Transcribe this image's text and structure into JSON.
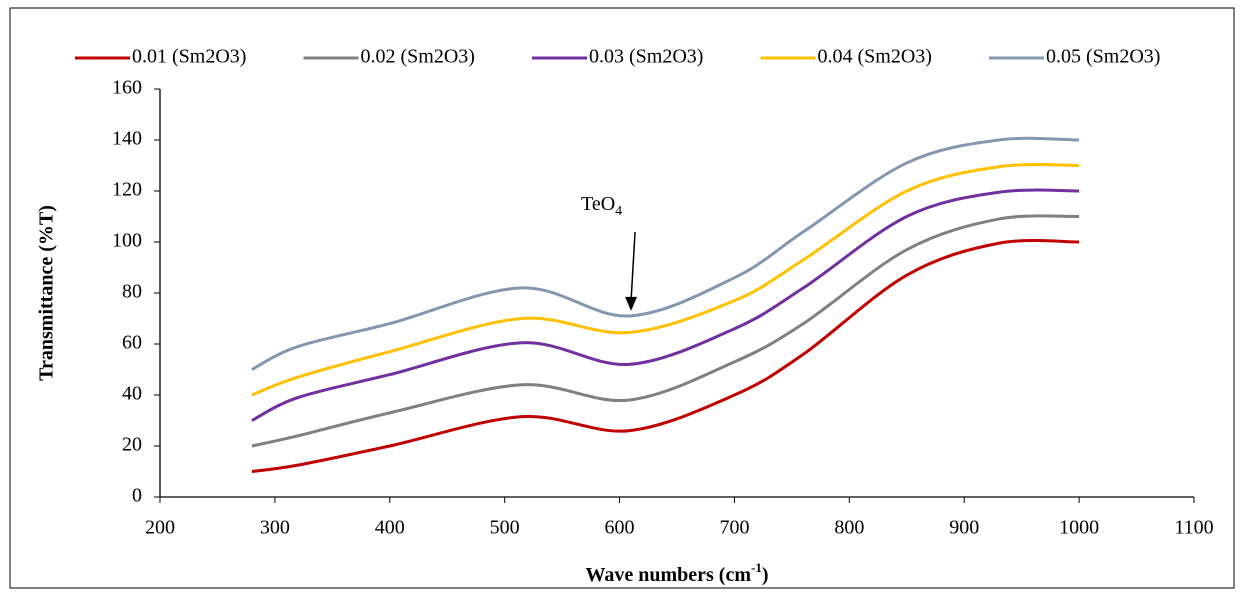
{
  "chart_data": {
    "type": "line",
    "x_label": [
      "Wave numbers (cm",
      "-1",
      ")"
    ],
    "y_label": "Transmittance (%T)",
    "x": [
      280,
      320,
      400,
      515,
      608,
      700,
      760,
      850,
      930,
      1000
    ],
    "series": [
      {
        "name": "0.01 (Sm2O3)",
        "color": "#c00000",
        "values": [
          10,
          12.5,
          20,
          31.5,
          26,
          40,
          56,
          87,
          99.5,
          100
        ]
      },
      {
        "name": "0.02 (Sm2O3)",
        "color": "#808080",
        "values": [
          20,
          24,
          33,
          44,
          38,
          53,
          68,
          97,
          109,
          110
        ]
      },
      {
        "name": "0.03 (Sm2O3)",
        "color": "#7030a0",
        "values": [
          30,
          39,
          48,
          60.5,
          52,
          66,
          82,
          110,
          119.5,
          120
        ]
      },
      {
        "name": "0.04 (Sm2O3)",
        "color": "#ffc000",
        "values": [
          40,
          47,
          57,
          70,
          64.5,
          77,
          93,
          120,
          129.5,
          130
        ]
      },
      {
        "name": "0.05 (Sm2O3)",
        "color": "#8497b0",
        "values": [
          50,
          59,
          68,
          82,
          71,
          86,
          104,
          131,
          140,
          140
        ]
      }
    ],
    "xlim": [
      200,
      1100
    ],
    "xticks": [
      200,
      300,
      400,
      500,
      600,
      700,
      800,
      900,
      1000,
      1100
    ],
    "ylim": [
      0,
      160
    ],
    "yticks": [
      0,
      20,
      40,
      60,
      80,
      100,
      120,
      140,
      160
    ],
    "grid": false,
    "legend": "top",
    "annotations": [
      {
        "text": "TeO",
        "sub": "4",
        "x": 610,
        "y": 73
      }
    ]
  }
}
